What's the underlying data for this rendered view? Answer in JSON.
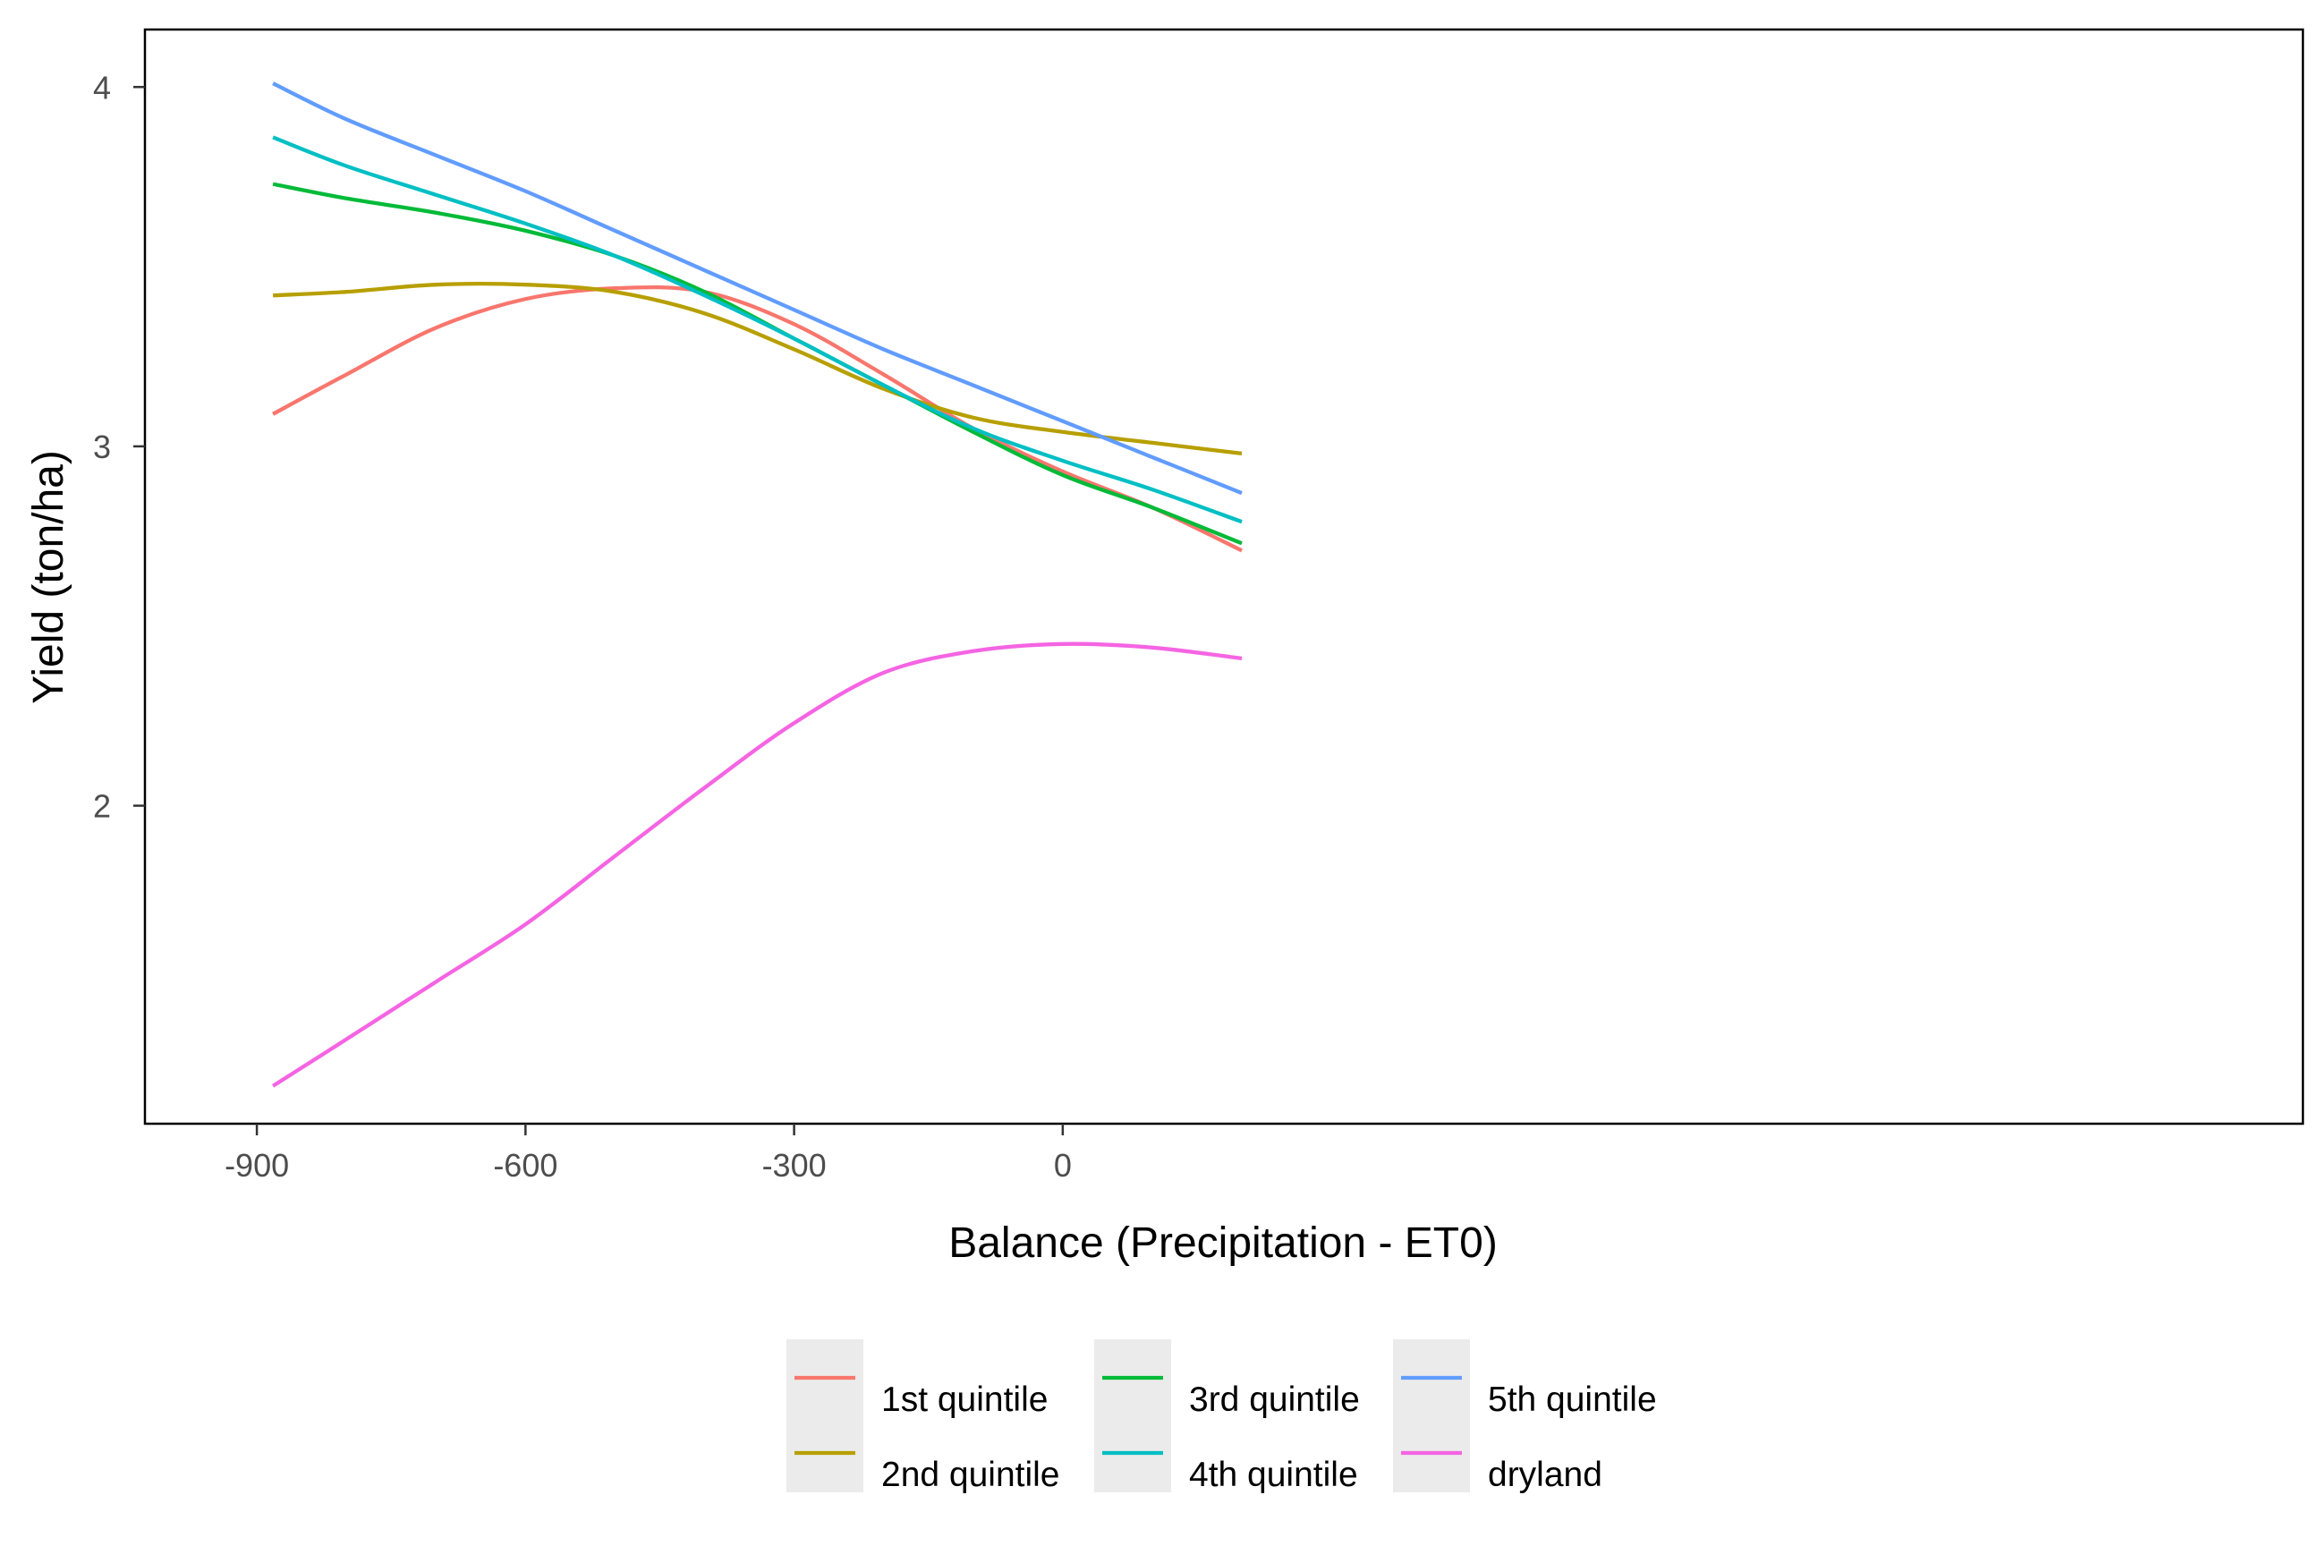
{
  "chart_data": {
    "type": "line",
    "title": "",
    "xlabel": "Balance (Precipitation - ET0)",
    "ylabel": "Yield (ton/ha)",
    "xlim": [
      -1025,
      1385
    ],
    "ylim": [
      1.115,
      4.16
    ],
    "x_ticks": [
      -900,
      -600,
      -300,
      0
    ],
    "x_tick_labels": [
      "-900",
      "-600",
      "-300",
      "0"
    ],
    "y_ticks": [
      2,
      3,
      4
    ],
    "y_tick_labels": [
      "2",
      "3",
      "4"
    ],
    "grid": false,
    "legend_position": "bottom",
    "x": [
      -882,
      -800,
      -700,
      -600,
      -500,
      -400,
      -300,
      -200,
      -100,
      0,
      100,
      200
    ],
    "series": [
      {
        "name": "1st quintile",
        "color": "#F8766D",
        "values": [
          3.09,
          3.2,
          3.33,
          3.41,
          3.44,
          3.43,
          3.34,
          3.2,
          3.05,
          2.93,
          2.83,
          2.71
        ]
      },
      {
        "name": "2nd quintile",
        "color": "#B79F00",
        "values": [
          3.42,
          3.43,
          3.45,
          3.45,
          3.43,
          3.37,
          3.27,
          3.16,
          3.08,
          3.04,
          3.01,
          2.98
        ]
      },
      {
        "name": "3rd quintile",
        "color": "#00BA38",
        "values": [
          3.73,
          3.69,
          3.65,
          3.6,
          3.53,
          3.43,
          3.3,
          3.17,
          3.04,
          2.92,
          2.83,
          2.73
        ]
      },
      {
        "name": "4th quintile",
        "color": "#00BFC4",
        "values": [
          3.86,
          3.78,
          3.7,
          3.62,
          3.53,
          3.42,
          3.3,
          3.17,
          3.05,
          2.96,
          2.88,
          2.79
        ]
      },
      {
        "name": "5th quintile",
        "color": "#619CFF",
        "values": [
          4.01,
          3.91,
          3.81,
          3.71,
          3.6,
          3.49,
          3.38,
          3.27,
          3.17,
          3.07,
          2.97,
          2.87
        ]
      },
      {
        "name": "dryland",
        "color": "#F564E3",
        "values": [
          1.22,
          1.35,
          1.51,
          1.67,
          1.86,
          2.05,
          2.23,
          2.37,
          2.43,
          2.45,
          2.44,
          2.41
        ]
      }
    ]
  }
}
